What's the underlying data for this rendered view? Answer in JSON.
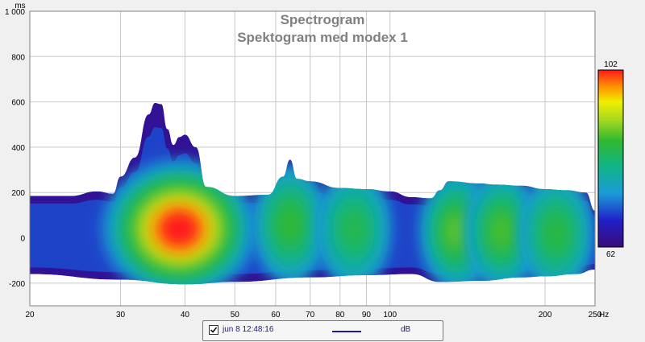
{
  "chart_data": {
    "type": "heatmap",
    "title": "Spectrogram",
    "subtitle": "Spektogram med modex 1",
    "xscale": "log",
    "xlim": [
      20,
      250
    ],
    "ylim": [
      -300,
      1000
    ],
    "xunit": "Hz",
    "yunit": "ms",
    "xticks": [
      "20",
      "30",
      "40",
      "50",
      "60",
      "70",
      "80",
      "90",
      "100",
      "200",
      "250"
    ],
    "xtick_values": [
      20,
      30,
      40,
      50,
      60,
      70,
      80,
      90,
      100,
      200,
      250
    ],
    "yticks": [
      "1 000",
      "800",
      "600",
      "400",
      "200",
      "0",
      "-200"
    ],
    "ytick_values": [
      1000,
      800,
      600,
      400,
      200,
      0,
      -200
    ],
    "colorbar": {
      "max": "102",
      "min": "62",
      "unit": "dB"
    },
    "grid": true,
    "series": [
      {
        "name": "jun 8 12:48:16",
        "upper_envelope_ms": [
          [
            20,
            185
          ],
          [
            24,
            185
          ],
          [
            27,
            205
          ],
          [
            29,
            195
          ],
          [
            30,
            270
          ],
          [
            32,
            355
          ],
          [
            34,
            545
          ],
          [
            35,
            595
          ],
          [
            36,
            590
          ],
          [
            37,
            480
          ],
          [
            38,
            410
          ],
          [
            39,
            445
          ],
          [
            40,
            455
          ],
          [
            42,
            400
          ],
          [
            44,
            225
          ],
          [
            50,
            185
          ],
          [
            58,
            190
          ],
          [
            62,
            270
          ],
          [
            64,
            345
          ],
          [
            66,
            260
          ],
          [
            70,
            250
          ],
          [
            80,
            220
          ],
          [
            90,
            215
          ],
          [
            100,
            205
          ],
          [
            110,
            180
          ],
          [
            120,
            175
          ],
          [
            125,
            210
          ],
          [
            130,
            250
          ],
          [
            150,
            240
          ],
          [
            160,
            235
          ],
          [
            180,
            230
          ],
          [
            200,
            215
          ],
          [
            220,
            210
          ],
          [
            240,
            200
          ],
          [
            250,
            120
          ]
        ],
        "lower_envelope_ms": [
          [
            20,
            -160
          ],
          [
            30,
            -185
          ],
          [
            40,
            -205
          ],
          [
            50,
            -195
          ],
          [
            70,
            -175
          ],
          [
            90,
            -165
          ],
          [
            110,
            -160
          ],
          [
            125,
            -195
          ],
          [
            150,
            -190
          ],
          [
            180,
            -175
          ],
          [
            200,
            -170
          ],
          [
            230,
            -160
          ],
          [
            250,
            -140
          ]
        ],
        "hotspots": [
          {
            "hz": 39,
            "ms": 40,
            "db": 102
          },
          {
            "hz": 64,
            "ms": 60,
            "db": 86
          },
          {
            "hz": 85,
            "ms": 40,
            "db": 84
          },
          {
            "hz": 135,
            "ms": 30,
            "db": 88
          },
          {
            "hz": 165,
            "ms": 30,
            "db": 87
          },
          {
            "hz": 210,
            "ms": 20,
            "db": 85
          }
        ]
      }
    ]
  },
  "legend": {
    "date": "jun 8 12:48:16",
    "unit": "dB",
    "line_color": "#1a1aa0"
  }
}
